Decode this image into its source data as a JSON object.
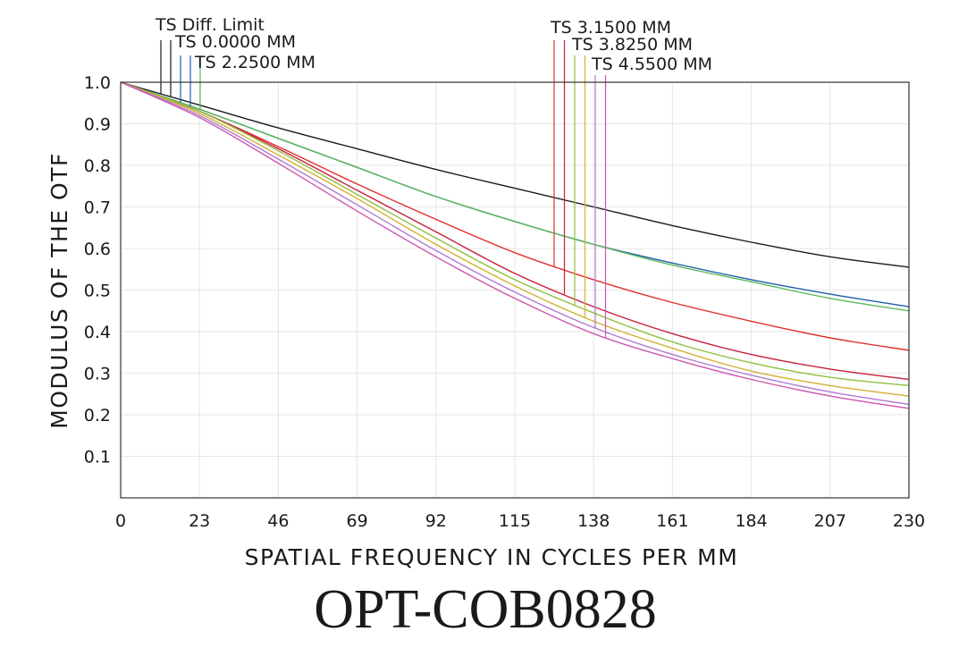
{
  "chart_data": {
    "type": "line",
    "title": "OPT-COB0828",
    "xlabel": "SPATIAL FREQUENCY IN CYCLES PER MM",
    "ylabel": "MODULUS OF THE OTF",
    "xlim": [
      0,
      230
    ],
    "ylim": [
      0,
      1.0
    ],
    "xticks": [
      0,
      23,
      46,
      69,
      92,
      115,
      138,
      161,
      184,
      207,
      230
    ],
    "yticks": [
      0.1,
      0.2,
      0.3,
      0.4,
      0.5,
      0.6,
      0.7,
      0.8,
      0.9,
      1.0
    ],
    "grid": true,
    "legend_groups": [
      {
        "entries": [
          "TS  Diff. Limit",
          "TS  0.0000  MM",
          "TS  2.2500  MM"
        ]
      },
      {
        "entries": [
          "TS  3.1500  MM",
          "TS  3.8250  MM",
          "TS  4.5500  MM"
        ]
      }
    ],
    "x": [
      0,
      23,
      46,
      69,
      92,
      115,
      138,
      161,
      184,
      207,
      230
    ],
    "series": [
      {
        "name": "TS  Diff. Limit",
        "color": "#1a1a1a",
        "values": [
          1.0,
          0.945,
          0.89,
          0.84,
          0.79,
          0.745,
          0.7,
          0.655,
          0.615,
          0.58,
          0.555
        ]
      },
      {
        "name": "TS  0.0000  MM",
        "color": "#1f5fa8",
        "values": [
          1.0,
          0.935,
          0.865,
          0.795,
          0.725,
          0.665,
          0.61,
          0.565,
          0.525,
          0.49,
          0.46
        ]
      },
      {
        "name": "TS  2.2500  MM",
        "color": "#5cb85c",
        "values": [
          1.0,
          0.935,
          0.865,
          0.795,
          0.725,
          0.665,
          0.61,
          0.56,
          0.52,
          0.48,
          0.45
        ]
      },
      {
        "name": "TS  3.1500  MM",
        "color": "#e23030",
        "values": [
          1.0,
          0.93,
          0.845,
          0.755,
          0.67,
          0.59,
          0.525,
          0.47,
          0.425,
          0.385,
          0.355
        ]
      },
      {
        "name": "TS  3.1500  MM",
        "color": "#c81e3c",
        "values": [
          1.0,
          0.93,
          0.84,
          0.74,
          0.64,
          0.54,
          0.46,
          0.395,
          0.345,
          0.31,
          0.285
        ]
      },
      {
        "name": "TS  3.8250  MM",
        "color": "#8fbf3f",
        "values": [
          1.0,
          0.93,
          0.835,
          0.73,
          0.625,
          0.525,
          0.445,
          0.375,
          0.325,
          0.29,
          0.27
        ]
      },
      {
        "name": "TS  3.8250  MM",
        "color": "#d4b030",
        "values": [
          1.0,
          0.925,
          0.825,
          0.72,
          0.61,
          0.51,
          0.425,
          0.36,
          0.305,
          0.27,
          0.245
        ]
      },
      {
        "name": "TS  4.5500  MM",
        "color": "#b07ad0",
        "values": [
          1.0,
          0.92,
          0.815,
          0.705,
          0.595,
          0.495,
          0.41,
          0.345,
          0.295,
          0.255,
          0.225
        ]
      },
      {
        "name": "TS  4.5500  MM",
        "color": "#cc55b0",
        "values": [
          1.0,
          0.915,
          0.805,
          0.69,
          0.58,
          0.48,
          0.395,
          0.335,
          0.285,
          0.245,
          0.215
        ]
      }
    ]
  }
}
